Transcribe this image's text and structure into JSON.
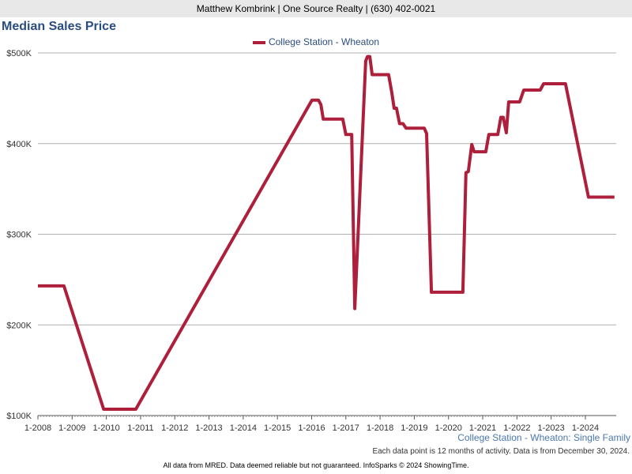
{
  "header": "Matthew Kombrink | One Source Realty | (630) 402-0021",
  "chart_data": {
    "type": "line",
    "title": "Median Sales Price",
    "legend": [
      "College Station - Wheaton"
    ],
    "legend_placement": "top-center",
    "color": "#ad1f3a",
    "ylim": [
      100000,
      500000
    ],
    "xlim": [
      2008,
      2024.9
    ],
    "yticks": [
      {
        "v": 100000,
        "label": "$100K"
      },
      {
        "v": 200000,
        "label": "$200K"
      },
      {
        "v": 300000,
        "label": "$300K"
      },
      {
        "v": 400000,
        "label": "$400K"
      },
      {
        "v": 500000,
        "label": "$500K"
      }
    ],
    "xticks": [
      "1-2008",
      "1-2009",
      "1-2010",
      "1-2011",
      "1-2012",
      "1-2013",
      "1-2014",
      "1-2015",
      "1-2016",
      "1-2017",
      "1-2018",
      "1-2019",
      "1-2020",
      "1-2021",
      "1-2022",
      "1-2023",
      "1-2024"
    ],
    "grid": true,
    "series": [
      {
        "name": "College Station - Wheaton",
        "points": [
          [
            2008.0,
            243000
          ],
          [
            2008.76,
            243000
          ],
          [
            2009.92,
            107000
          ],
          [
            2010.86,
            107000
          ],
          [
            2016.01,
            448000
          ],
          [
            2016.2,
            448000
          ],
          [
            2016.27,
            443000
          ],
          [
            2016.34,
            427000
          ],
          [
            2016.91,
            427000
          ],
          [
            2017.0,
            410000
          ],
          [
            2017.17,
            410000
          ],
          [
            2017.26,
            218000
          ],
          [
            2017.58,
            491000
          ],
          [
            2017.63,
            496000
          ],
          [
            2017.7,
            496000
          ],
          [
            2017.77,
            476000
          ],
          [
            2018.25,
            476000
          ],
          [
            2018.34,
            457000
          ],
          [
            2018.41,
            439000
          ],
          [
            2018.48,
            439000
          ],
          [
            2018.57,
            422000
          ],
          [
            2018.67,
            422000
          ],
          [
            2018.76,
            417000
          ],
          [
            2019.29,
            417000
          ],
          [
            2019.36,
            411000
          ],
          [
            2019.5,
            236000
          ],
          [
            2020.42,
            236000
          ],
          [
            2020.51,
            368000
          ],
          [
            2020.58,
            369000
          ],
          [
            2020.68,
            399000
          ],
          [
            2020.75,
            391000
          ],
          [
            2021.09,
            391000
          ],
          [
            2021.18,
            410000
          ],
          [
            2021.44,
            410000
          ],
          [
            2021.53,
            429000
          ],
          [
            2021.6,
            429000
          ],
          [
            2021.69,
            412000
          ],
          [
            2021.76,
            446000
          ],
          [
            2022.08,
            446000
          ],
          [
            2022.2,
            459000
          ],
          [
            2022.68,
            459000
          ],
          [
            2022.78,
            466000
          ],
          [
            2023.42,
            466000
          ],
          [
            2024.09,
            341000
          ],
          [
            2024.85,
            341000
          ]
        ]
      }
    ]
  },
  "subtitle": "College Station - Wheaton: Single Family",
  "note": "Each data point is 12 months of activity. Data is from December 30, 2024.",
  "disclaimer": "All data from MRED. Data deemed reliable but not guaranteed. InfoSparks © 2024 ShowingTime."
}
